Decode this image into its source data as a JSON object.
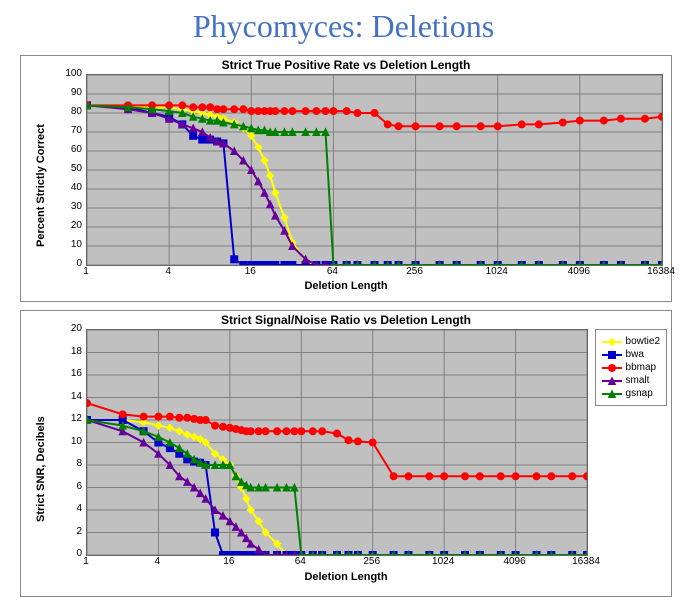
{
  "page_title": "Phycomyces: Deletions",
  "title_color": "#4472c4",
  "title_fontsize": 32,
  "background_color": "#ffffff",
  "x_axis": {
    "label": "Deletion Length",
    "scale": "log2",
    "ticks": [
      1,
      4,
      16,
      64,
      256,
      1024,
      4096,
      16384
    ],
    "min": 1,
    "max": 16384
  },
  "series_meta": [
    {
      "key": "bowtie2",
      "label": "bowtie2",
      "color": "#ffff00",
      "marker": "diamond"
    },
    {
      "key": "bwa",
      "label": "bwa",
      "color": "#0000cc",
      "marker": "square"
    },
    {
      "key": "bbmap",
      "label": "bbmap",
      "color": "#ff0000",
      "marker": "circle"
    },
    {
      "key": "smalt",
      "label": "smalt",
      "color": "#660099",
      "marker": "triangle"
    },
    {
      "key": "gsnap",
      "label": "gsnap",
      "color": "#008000",
      "marker": "triangle"
    }
  ],
  "legend": {
    "position": "right",
    "fontsize": 10,
    "border_color": "#888888",
    "bg_color": "#ffffff"
  },
  "chart1": {
    "title": "Strict True Positive Rate vs Deletion Length",
    "ylabel": "Percent Strictly Correct",
    "ylim": [
      0,
      100
    ],
    "ytick_step": 10,
    "plot_bg": "#c0c0c0",
    "grid_color": "#808080",
    "x": [
      1,
      2,
      3,
      4,
      5,
      6,
      7,
      8,
      9,
      10,
      12,
      14,
      16,
      18,
      20,
      22,
      24,
      28,
      32,
      40,
      48,
      56,
      64,
      80,
      96,
      128,
      160,
      192,
      256,
      384,
      512,
      768,
      1024,
      1536,
      2048,
      3072,
      4096,
      6144,
      8192,
      12288,
      16384
    ],
    "series": {
      "bowtie2": [
        84,
        84,
        83,
        83,
        82,
        81,
        80,
        79,
        78,
        77,
        75,
        72,
        68,
        62,
        55,
        47,
        38,
        25,
        12,
        2,
        0,
        0,
        0,
        0,
        0,
        0,
        0,
        0,
        0,
        0,
        0,
        0,
        0,
        0,
        0,
        0,
        0,
        0,
        0,
        0,
        0
      ],
      "bwa": [
        84,
        83,
        80,
        78,
        74,
        68,
        66,
        66,
        65,
        64,
        3,
        0,
        0,
        0,
        0,
        0,
        0,
        0,
        0,
        0,
        0,
        0,
        0,
        0,
        0,
        0,
        0,
        0,
        0,
        0,
        0,
        0,
        0,
        0,
        0,
        0,
        0,
        0,
        0,
        0,
        0
      ],
      "bbmap": [
        84,
        84,
        84,
        84,
        84,
        83,
        83,
        83,
        82,
        82,
        82,
        82,
        81,
        81,
        81,
        81,
        81,
        81,
        81,
        81,
        81,
        81,
        81,
        81,
        80,
        80,
        74,
        73,
        73,
        73,
        73,
        73,
        73,
        74,
        74,
        75,
        76,
        76,
        77,
        77,
        78
      ],
      "smalt": [
        84,
        82,
        80,
        77,
        74,
        72,
        70,
        67,
        65,
        64,
        60,
        55,
        50,
        44,
        38,
        32,
        26,
        18,
        10,
        3,
        0,
        0,
        0,
        0,
        0,
        0,
        0,
        0,
        0,
        0,
        0,
        0,
        0,
        0,
        0,
        0,
        0,
        0,
        0,
        0,
        0
      ],
      "gsnap": [
        84,
        83,
        82,
        81,
        80,
        78,
        77,
        76,
        76,
        75,
        74,
        73,
        72,
        71,
        71,
        70,
        70,
        70,
        70,
        70,
        70,
        70,
        0,
        0,
        0,
        0,
        0,
        0,
        0,
        0,
        0,
        0,
        0,
        0,
        0,
        0,
        0,
        0,
        0,
        0,
        0
      ]
    }
  },
  "chart2": {
    "title": "Strict Signal/Noise Ratio vs Deletion Length",
    "ylabel": "Strict SNR, Decibels",
    "ylim": [
      0,
      20
    ],
    "ytick_step": 2,
    "plot_bg": "#c0c0c0",
    "grid_color": "#808080",
    "x": [
      1,
      2,
      3,
      4,
      5,
      6,
      7,
      8,
      9,
      10,
      12,
      14,
      16,
      18,
      20,
      22,
      24,
      28,
      32,
      40,
      48,
      56,
      64,
      80,
      96,
      128,
      160,
      192,
      256,
      384,
      512,
      768,
      1024,
      1536,
      2048,
      3072,
      4096,
      6144,
      8192,
      12288,
      16384
    ],
    "series": {
      "bowtie2": [
        12,
        12,
        11.8,
        11.5,
        11.3,
        11,
        10.7,
        10.5,
        10.3,
        10,
        9,
        8.5,
        8,
        7,
        6,
        5,
        4,
        3,
        2,
        1,
        0,
        0,
        0,
        0,
        0,
        0,
        0,
        0,
        0,
        0,
        0,
        0,
        0,
        0,
        0,
        0,
        0,
        0,
        0,
        0,
        0
      ],
      "bwa": [
        12,
        12,
        11,
        10,
        9.5,
        9,
        8.5,
        8.3,
        8.2,
        8,
        2,
        0,
        0,
        0,
        0,
        0,
        0,
        0,
        0,
        0,
        0,
        0,
        0,
        0,
        0,
        0,
        0,
        0,
        0,
        0,
        0,
        0,
        0,
        0,
        0,
        0,
        0,
        0,
        0,
        0,
        0
      ],
      "bbmap": [
        13.5,
        12.5,
        12.3,
        12.3,
        12.3,
        12.2,
        12.2,
        12.1,
        12,
        12,
        11.5,
        11.4,
        11.3,
        11.2,
        11.1,
        11,
        11,
        11,
        11,
        11,
        11,
        11,
        11,
        11,
        11,
        10.8,
        10.2,
        10.1,
        10,
        7,
        7,
        7,
        7,
        7,
        7,
        7,
        7,
        7,
        7,
        7,
        7
      ],
      "smalt": [
        12,
        11,
        10,
        9,
        8,
        7,
        6.5,
        6,
        5.5,
        5,
        4,
        3.5,
        3,
        2.5,
        2,
        1.5,
        1,
        0.5,
        0,
        0,
        0,
        0,
        0,
        0,
        0,
        0,
        0,
        0,
        0,
        0,
        0,
        0,
        0,
        0,
        0,
        0,
        0,
        0,
        0,
        0,
        0
      ],
      "gsnap": [
        12,
        11.5,
        11,
        10.5,
        10,
        9.5,
        9,
        8.5,
        8.2,
        8,
        8,
        8,
        8,
        7,
        6.5,
        6.2,
        6,
        6,
        6,
        6,
        6,
        6,
        0,
        0,
        0,
        0,
        0,
        0,
        0,
        0,
        0,
        0,
        0,
        0,
        0,
        0,
        0,
        0,
        0,
        0,
        0
      ]
    }
  }
}
